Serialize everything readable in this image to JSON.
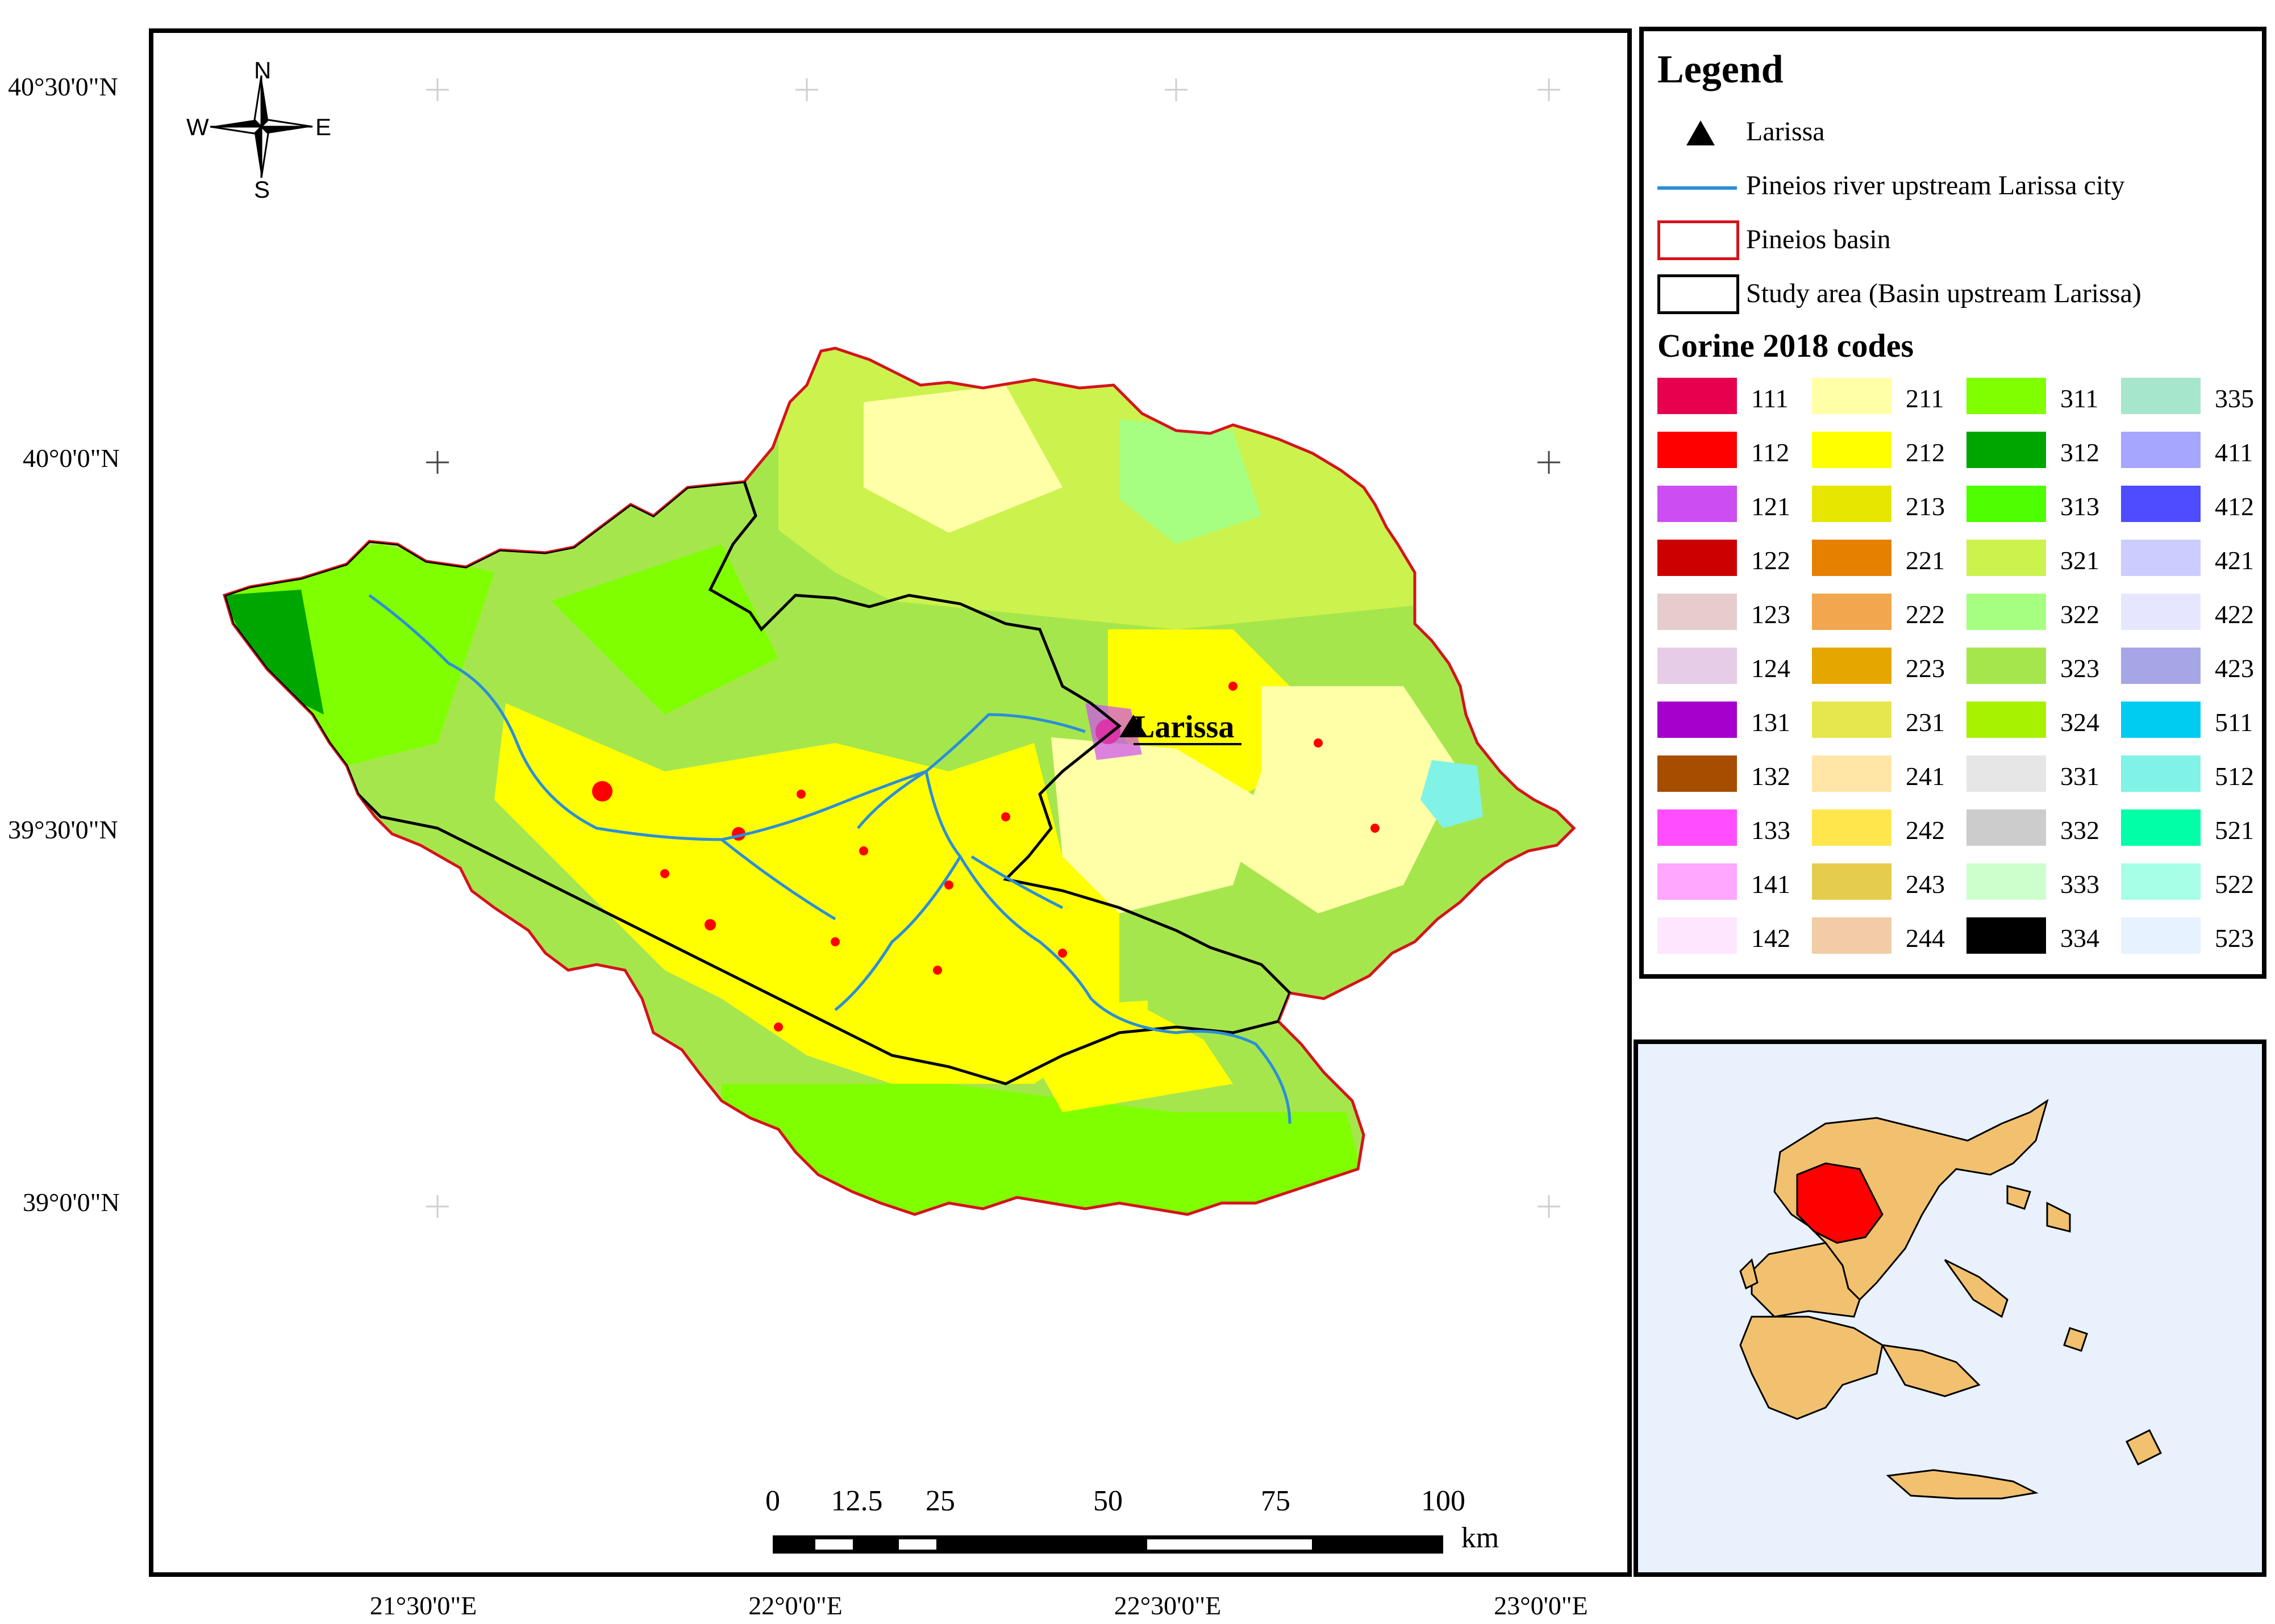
{
  "latitude_labels": [
    "40°30'0\"N",
    "40°0'0\"N",
    "39°30'0\"N",
    "39°0'0\"N"
  ],
  "longitude_labels": [
    "21°30'0\"E",
    "22°0'0\"E",
    "22°30'0\"E",
    "23°0'0\"E"
  ],
  "north_arrow": {
    "n": "N",
    "s": "S",
    "e": "E",
    "w": "W"
  },
  "city_label": "Larissa",
  "scale_bar": {
    "ticks": [
      "0",
      "12.5",
      "25",
      "50",
      "75",
      "100"
    ],
    "unit": "km"
  },
  "legend": {
    "title": "Legend",
    "items": [
      {
        "symbol": "triangle-icon",
        "label": "Larissa"
      },
      {
        "symbol": "line",
        "color": "#2b8fd6",
        "label": "Pineios river upstream Larissa city"
      },
      {
        "symbol": "box",
        "color": "#d4141b",
        "label": "Pineios basin"
      },
      {
        "symbol": "box",
        "color": "#000000",
        "label": "Study area (Basin upstream Larissa)"
      }
    ],
    "codes_title": "Corine 2018 codes",
    "codes": [
      {
        "code": "111",
        "color": "#e6004d"
      },
      {
        "code": "112",
        "color": "#ff0000"
      },
      {
        "code": "121",
        "color": "#cc4df2"
      },
      {
        "code": "122",
        "color": "#cc0000"
      },
      {
        "code": "123",
        "color": "#e6cccc"
      },
      {
        "code": "124",
        "color": "#e6cce6"
      },
      {
        "code": "131",
        "color": "#a600cc"
      },
      {
        "code": "132",
        "color": "#a64d00"
      },
      {
        "code": "133",
        "color": "#ff4dff"
      },
      {
        "code": "141",
        "color": "#ffa6ff"
      },
      {
        "code": "142",
        "color": "#ffe6ff"
      },
      {
        "code": "211",
        "color": "#ffffa8"
      },
      {
        "code": "212",
        "color": "#ffff00"
      },
      {
        "code": "213",
        "color": "#e6e600"
      },
      {
        "code": "221",
        "color": "#e68000"
      },
      {
        "code": "222",
        "color": "#f2a64d"
      },
      {
        "code": "223",
        "color": "#e6a600"
      },
      {
        "code": "231",
        "color": "#e6e64d"
      },
      {
        "code": "241",
        "color": "#ffe6a6"
      },
      {
        "code": "242",
        "color": "#ffe64d"
      },
      {
        "code": "243",
        "color": "#e6cc4d"
      },
      {
        "code": "244",
        "color": "#f2cca6"
      },
      {
        "code": "311",
        "color": "#80ff00"
      },
      {
        "code": "312",
        "color": "#00a600"
      },
      {
        "code": "313",
        "color": "#4dff00"
      },
      {
        "code": "321",
        "color": "#ccf24d"
      },
      {
        "code": "322",
        "color": "#a6ff80"
      },
      {
        "code": "323",
        "color": "#a6e64d"
      },
      {
        "code": "324",
        "color": "#a6f200"
      },
      {
        "code": "331",
        "color": "#e6e6e6"
      },
      {
        "code": "332",
        "color": "#cccccc"
      },
      {
        "code": "333",
        "color": "#ccffcc"
      },
      {
        "code": "334",
        "color": "#000000"
      },
      {
        "code": "335",
        "color": "#a6e6cc"
      },
      {
        "code": "411",
        "color": "#a6a6ff"
      },
      {
        "code": "412",
        "color": "#4d4dff"
      },
      {
        "code": "421",
        "color": "#ccccff"
      },
      {
        "code": "422",
        "color": "#e6e6ff"
      },
      {
        "code": "423",
        "color": "#a6a6e6"
      },
      {
        "code": "511",
        "color": "#00ccf2"
      },
      {
        "code": "512",
        "color": "#80f2e6"
      },
      {
        "code": "521",
        "color": "#00ffa6"
      },
      {
        "code": "522",
        "color": "#a6ffe6"
      },
      {
        "code": "523",
        "color": "#e6f2ff"
      }
    ]
  },
  "colors": {
    "basin_outline": "#d4141b",
    "study_area_outline": "#000000",
    "river": "#2b8fd6",
    "inset_land": "#f2c16f",
    "inset_highlight": "#ff0000",
    "inset_sea": "#e8f1fc"
  }
}
